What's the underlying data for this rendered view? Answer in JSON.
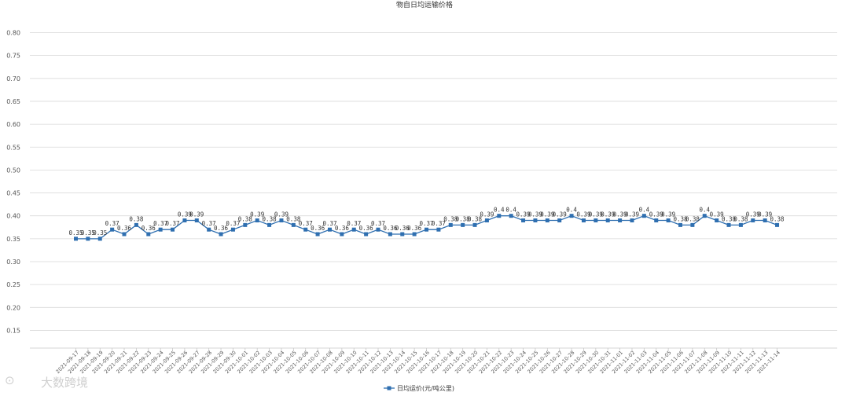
{
  "chart_data": {
    "type": "line",
    "title": "物自日均运输价格",
    "xlabel": "",
    "ylabel": "",
    "ylim": [
      0.1,
      0.8
    ],
    "yticks": [
      "0.80",
      "0.75",
      "0.70",
      "0.65",
      "0.60",
      "0.55",
      "0.50",
      "0.45",
      "0.40",
      "0.35",
      "0.30",
      "0.25",
      "0.20",
      "0.15"
    ],
    "grid": true,
    "legend_position": "bottom",
    "series_color": "#2f6fb0",
    "categories": [
      "2021-09-17",
      "2021-09-18",
      "2021-09-19",
      "2021-09-20",
      "2021-09-21",
      "2021-09-22",
      "2021-09-23",
      "2021-09-24",
      "2021-09-25",
      "2021-09-26",
      "2021-09-27",
      "2021-09-28",
      "2021-09-29",
      "2021-09-30",
      "2021-10-01",
      "2021-10-02",
      "2021-10-03",
      "2021-10-04",
      "2021-10-05",
      "2021-10-06",
      "2021-10-07",
      "2021-10-08",
      "2021-10-09",
      "2021-10-10",
      "2021-10-11",
      "2021-10-12",
      "2021-10-13",
      "2021-10-14",
      "2021-10-15",
      "2021-10-16",
      "2021-10-17",
      "2021-10-18",
      "2021-10-19",
      "2021-10-20",
      "2021-10-21",
      "2021-10-22",
      "2021-10-23",
      "2021-10-24",
      "2021-10-25",
      "2021-10-26",
      "2021-10-27",
      "2021-10-28",
      "2021-10-29",
      "2021-10-30",
      "2021-10-31",
      "2021-11-01",
      "2021-11-02",
      "2021-11-03",
      "2021-11-04",
      "2021-11-05",
      "2021-11-06",
      "2021-11-07",
      "2021-11-08",
      "2021-11-09",
      "2021-11-10",
      "2021-11-11",
      "2021-11-12",
      "2021-11-13",
      "2021-11-14"
    ],
    "series": [
      {
        "name": "日均运价(元/吨公里)",
        "values": [
          0.35,
          0.35,
          0.35,
          0.37,
          0.36,
          0.38,
          0.36,
          0.37,
          0.37,
          0.39,
          0.39,
          0.37,
          0.36,
          0.37,
          0.38,
          0.39,
          0.38,
          0.39,
          0.38,
          0.37,
          0.36,
          0.37,
          0.36,
          0.37,
          0.36,
          0.37,
          0.36,
          0.36,
          0.36,
          0.37,
          0.37,
          0.38,
          0.38,
          0.38,
          0.39,
          0.4,
          0.4,
          0.39,
          0.39,
          0.39,
          0.39,
          0.4,
          0.39,
          0.39,
          0.39,
          0.39,
          0.39,
          0.4,
          0.39,
          0.39,
          0.38,
          0.38,
          0.4,
          0.39,
          0.38,
          0.38,
          0.39,
          0.39,
          0.38
        ],
        "labels": [
          "0.35",
          "0.35",
          "0.35",
          "0.37",
          "0.36",
          "0.38",
          "0.36",
          "0.37",
          "0.37",
          "0.39",
          "0.39",
          "0.37",
          "0.36",
          "0.37",
          "0.38",
          "0.39",
          "0.38",
          "0.39",
          "0.38",
          "0.37",
          "0.36",
          "0.37",
          "0.36",
          "0.37",
          "0.36",
          "0.37",
          "0.36",
          "0.36",
          "0.36",
          "0.37",
          "0.37",
          "0.38",
          "0.38",
          "0.38",
          "0.39",
          "0.4",
          "0.4",
          "0.39",
          "0.39",
          "0.39",
          "0.39",
          "0.4",
          "0.39",
          "0.39",
          "0.39",
          "0.39",
          "0.39",
          "0.4",
          "0.39",
          "0.39",
          "0.38",
          "0.38",
          "0.4",
          "0.39",
          "0.38",
          "0.38",
          "0.39",
          "0.39",
          "0.38"
        ]
      }
    ]
  },
  "watermark": "大数跨境"
}
